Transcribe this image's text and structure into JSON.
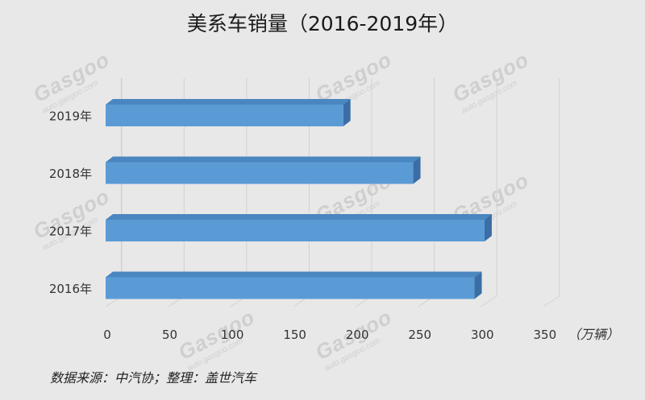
{
  "title": "美系车销量（2016-2019年）",
  "source": "数据来源：中汽协；整理：盖世汽车",
  "watermark": {
    "brand": "Gasgoo",
    "sub": "auto.gasgoo.com"
  },
  "chart_data": {
    "type": "bar",
    "orientation": "horizontal",
    "categories": [
      "2019年",
      "2018年",
      "2017年",
      "2016年"
    ],
    "values": [
      190,
      246,
      303,
      295
    ],
    "xunit": "（万辆）",
    "xlim": [
      0,
      350
    ],
    "xticks": [
      0,
      50,
      100,
      150,
      200,
      250,
      300,
      350
    ],
    "grid": true,
    "bar_color": "#5b9bd5"
  }
}
